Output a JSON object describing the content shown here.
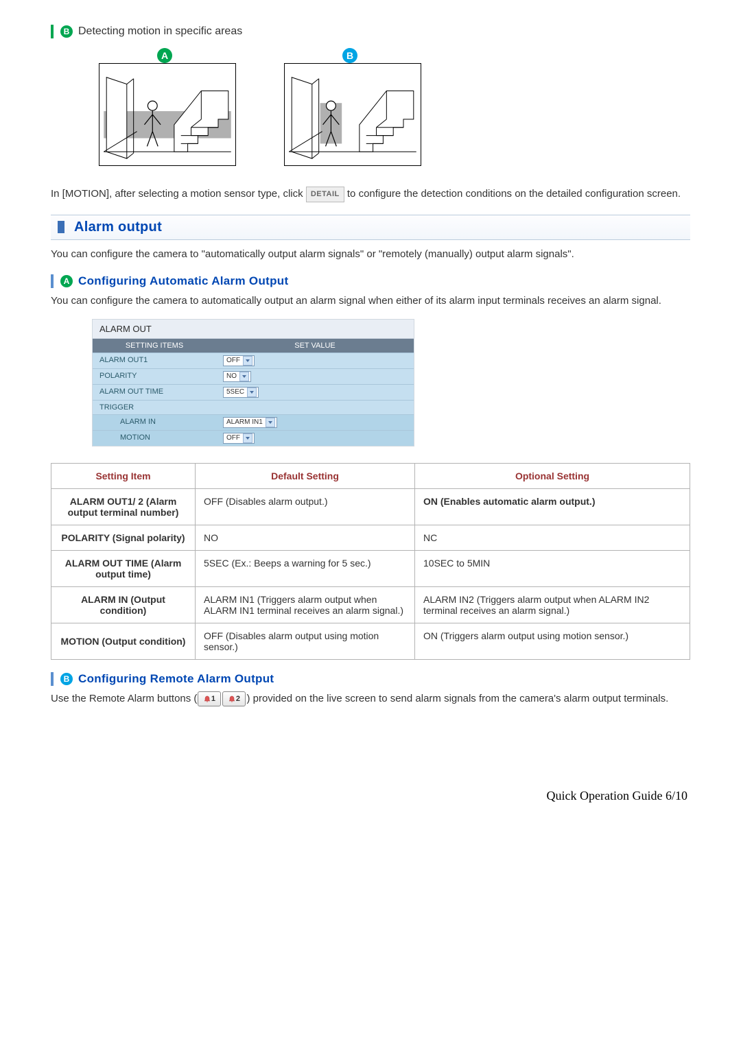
{
  "top_sub": {
    "badge": "B",
    "text": "Detecting motion in specific areas"
  },
  "diagram_labels": {
    "a": "A",
    "b": "B"
  },
  "motion_para_before": "In [MOTION], after selecting a motion sensor type, click ",
  "detail_label": "DETAIL",
  "motion_para_after": " to configure the detection conditions on the detailed configuration screen.",
  "section_alarm_output": "Alarm output",
  "alarm_output_para": "You can configure the camera to \"automatically output alarm signals\" or \"remotely (manually) output alarm signals\".",
  "sub_a": {
    "badge": "A",
    "title": "Configuring Automatic Alarm Output"
  },
  "sub_a_para": "You can configure the camera to automatically output an alarm signal when either of its alarm input terminals receives an alarm signal.",
  "panel": {
    "title": "ALARM OUT",
    "head": {
      "c1": "SETTING ITEMS",
      "c2": "SET VALUE"
    },
    "rows": [
      {
        "label": "ALARM OUT1",
        "value": "OFF",
        "indent": false
      },
      {
        "label": "POLARITY",
        "value": "NO",
        "indent": false
      },
      {
        "label": "ALARM OUT TIME",
        "value": "5SEC",
        "indent": false
      },
      {
        "label": "TRIGGER",
        "value": "",
        "indent": false,
        "novalue": true
      },
      {
        "label": "ALARM IN",
        "value": "ALARM IN1",
        "indent": true
      },
      {
        "label": "MOTION",
        "value": "OFF",
        "indent": true
      }
    ]
  },
  "table": {
    "headers": {
      "c1": "Setting Item",
      "c2": "Default Setting",
      "c3": "Optional Setting"
    },
    "rows": [
      {
        "c1": "ALARM OUT1/ 2 (Alarm output terminal number)",
        "c2": "OFF (Disables alarm output.)",
        "c3": "ON (Enables automatic alarm output.)",
        "c3_bold": true
      },
      {
        "c1": "POLARITY (Signal polarity)",
        "c2": "NO",
        "c3": "NC",
        "c3_bold": false
      },
      {
        "c1": "ALARM OUT TIME (Alarm output time)",
        "c2": "5SEC (Ex.: Beeps a warning for 5 sec.)",
        "c3": "10SEC to 5MIN",
        "c3_bold": false
      },
      {
        "c1": "ALARM IN (Output condition)",
        "c2": "ALARM IN1 (Triggers alarm output when ALARM IN1 terminal receives an alarm signal.)",
        "c3": "ALARM IN2 (Triggers alarm output when ALARM IN2 terminal receives an alarm signal.)",
        "c3_bold": false
      },
      {
        "c1": "MOTION (Output condition)",
        "c2": "OFF (Disables alarm output using motion sensor.)",
        "c3": "ON (Triggers alarm output using motion sensor.)",
        "c3_bold": false
      }
    ]
  },
  "sub_b2": {
    "badge": "B",
    "title": "Configuring Remote Alarm Output"
  },
  "remote_para_before": "Use the Remote Alarm buttons (",
  "remote_btn1": "1",
  "remote_btn2": "2",
  "remote_para_after": ") provided on the live screen to send alarm signals from the camera's alarm output terminals.",
  "footer": "Quick Operation Guide 6/10",
  "colors": {
    "green": "#00a651",
    "blue_badge": "#00a4e4",
    "section_title": "#0047b3",
    "th_red": "#993333",
    "panel_head_bg": "#6b7d90",
    "panel_row_bg": "#c5dff0"
  }
}
